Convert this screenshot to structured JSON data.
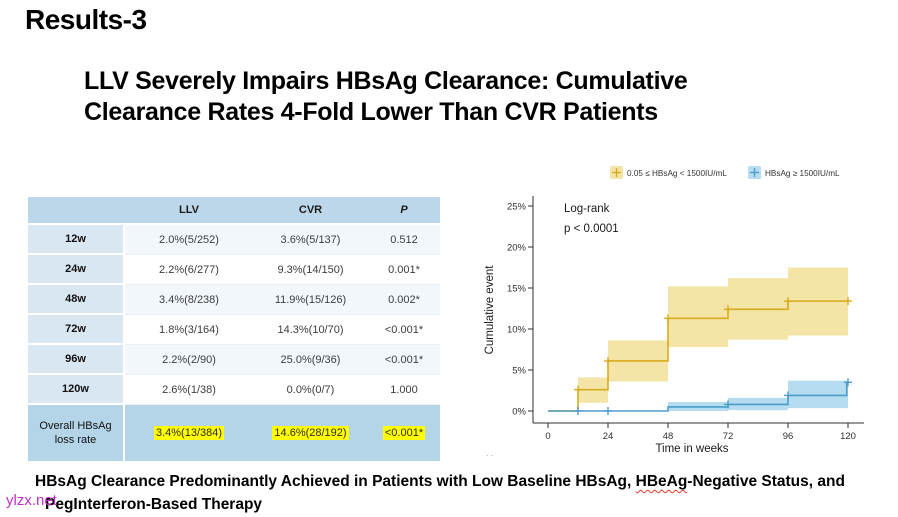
{
  "slide": {
    "title": "Results-3",
    "subtitle_line1": "LLV Severely Impairs HBsAg Clearance: Cumulative",
    "subtitle_line2": "Clearance Rates 4-Fold Lower Than CVR Patients",
    "footer": {
      "part1": "HBsAg Clearance Predominantly Achieved in Patients with Low Baseline HBsAg, ",
      "misspelled": "HBeAg",
      "part2": "-Negative Status, and",
      "line2": "PegInterferon-Based Therapy"
    },
    "watermark": "ylzx.net",
    "watermark_color": "#c130c8",
    "artifact": ".."
  },
  "table": {
    "headers": [
      "",
      "LLV",
      "CVR",
      "P"
    ],
    "rows": [
      {
        "label": "12w",
        "llv": "2.0%(5/252)",
        "cvr": "3.6%(5/137)",
        "p": "0.512"
      },
      {
        "label": "24w",
        "llv": "2.2%(6/277)",
        "cvr": "9.3%(14/150)",
        "p": "0.001*"
      },
      {
        "label": "48w",
        "llv": "3.4%(8/238)",
        "cvr": "11.9%(15/126)",
        "p": "0.002*"
      },
      {
        "label": "72w",
        "llv": "1.8%(3/164)",
        "cvr": "14.3%(10/70)",
        "p": "<0.001*"
      },
      {
        "label": "96w",
        "llv": "2.2%(2/90)",
        "cvr": "25.0%(9/36)",
        "p": "<0.001*"
      },
      {
        "label": "120w",
        "llv": "2.6%(1/38)",
        "cvr": "0.0%(0/7)",
        "p": "1.000"
      }
    ],
    "overall": {
      "label": "Overall HBsAg loss rate",
      "llv": "3.4%(13/384)",
      "cvr": "14.6%(28/192)",
      "p": "<0.001*"
    },
    "colors": {
      "header_bg": "#bcd7e9",
      "label_column_bg": "#d9e7f3",
      "stripe_bg": "#f2f7fb",
      "overall_bg": "#b4d5e8",
      "highlight": "#ffff00"
    }
  },
  "chart_data": {
    "type": "line",
    "subtype": "cumulative-incidence-step-with-confidence-bands",
    "title": "",
    "xlabel": "Time in weeks",
    "ylabel": "Cumulative event",
    "annotation_lines": [
      "Log-rank",
      "p < 0.0001"
    ],
    "xlim": [
      0,
      120
    ],
    "ylim": [
      0,
      25
    ],
    "xticks": [
      0,
      24,
      48,
      72,
      96,
      120
    ],
    "yticks": [
      0,
      5,
      10,
      15,
      20,
      25
    ],
    "ytick_labels": [
      "0%",
      "5%",
      "10%",
      "15%",
      "20%",
      "25%"
    ],
    "legend_position": "top",
    "grid": false,
    "series": [
      {
        "name": "0.05 ≤ HBsAg < 1500IU/mL",
        "color": "#d8ab1e",
        "band_color": "#f4e4a6",
        "steps_week_percent": [
          [
            0,
            0
          ],
          [
            12,
            2.6
          ],
          [
            24,
            6.1
          ],
          [
            48,
            11.3
          ],
          [
            72,
            12.4
          ],
          [
            96,
            13.4
          ]
        ],
        "end_week": 120,
        "censor_marks": [
          [
            12,
            2.6
          ],
          [
            24,
            6.1
          ],
          [
            48,
            11.3
          ],
          [
            72,
            12.4
          ],
          [
            96,
            13.4
          ],
          [
            120,
            13.4
          ]
        ],
        "confidence_band": [
          [
            12,
            24,
            1.0,
            4.1
          ],
          [
            24,
            48,
            3.6,
            8.6
          ],
          [
            48,
            72,
            7.8,
            15.2
          ],
          [
            72,
            96,
            8.7,
            16.2
          ],
          [
            96,
            120,
            9.2,
            17.5
          ]
        ]
      },
      {
        "name": "HBsAg ≥ 1500IU/mL",
        "color": "#4d9dcb",
        "band_color": "#b5dcf0",
        "steps_week_percent": [
          [
            0,
            0
          ],
          [
            48,
            0.5
          ],
          [
            72,
            0.8
          ],
          [
            96,
            1.9
          ],
          [
            119.5,
            3.5
          ]
        ],
        "end_week": 120,
        "censor_marks": [
          [
            12,
            0
          ],
          [
            24,
            0
          ],
          [
            72,
            0.8
          ],
          [
            96,
            1.9
          ],
          [
            120,
            3.5
          ]
        ],
        "confidence_band": [
          [
            48,
            72,
            0,
            1.1
          ],
          [
            72,
            96,
            0.1,
            1.6
          ],
          [
            96,
            120,
            0.35,
            3.7
          ]
        ]
      }
    ]
  }
}
